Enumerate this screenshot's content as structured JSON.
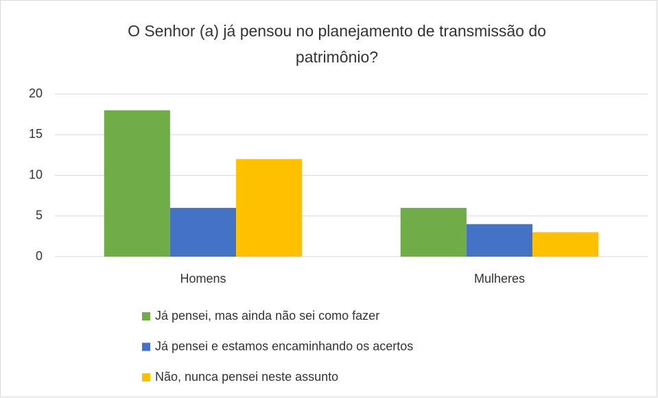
{
  "chart_data": {
    "type": "bar",
    "title": "O Senhor (a) já pensou no planejamento de transmissão do patrimônio?",
    "categories": [
      "Homens",
      "Mulheres"
    ],
    "series": [
      {
        "name": "Já pensei, mas ainda não sei como fazer",
        "color": "#70ad47",
        "values": [
          18,
          6
        ]
      },
      {
        "name": "Já pensei e estamos encaminhando os acertos",
        "color": "#4472c4",
        "values": [
          6,
          4
        ]
      },
      {
        "name": "Não, nunca pensei neste assunto",
        "color": "#ffc000",
        "values": [
          12,
          3
        ]
      }
    ],
    "ylim": [
      0,
      20
    ],
    "yticks": [
      0,
      5,
      10,
      15,
      20
    ],
    "grid": true,
    "legend": "bottom"
  }
}
